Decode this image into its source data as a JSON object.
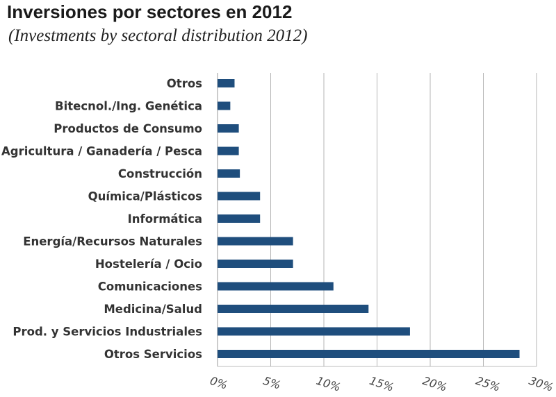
{
  "title": "Inversiones por sectores en 2012",
  "subtitle": "(Investments by sectoral distribution 2012)",
  "chart_data": {
    "type": "bar",
    "orientation": "horizontal",
    "categories": [
      "Otros",
      "Bitecnol./Ing. Genética",
      "Productos de Consumo",
      "Agricultura / Ganadería / Pesca",
      "Construcción",
      "Química/Plásticos",
      "Informática",
      "Energía/Recursos Naturales",
      "Hostelería / Ocio",
      "Comunicaciones",
      "Medicina/Salud",
      "Prod. y Servicios Industriales",
      "Otros Servicios"
    ],
    "values": [
      1.6,
      1.2,
      2.0,
      2.0,
      2.1,
      4.0,
      4.0,
      7.1,
      7.1,
      10.9,
      14.2,
      18.1,
      28.4
    ],
    "unit": "%",
    "xlim": [
      0,
      30
    ],
    "xticks": [
      "0%",
      "5%",
      "10%",
      "15%",
      "20%",
      "25%",
      "30%"
    ],
    "xlabel": "",
    "ylabel": "",
    "grid": "vertical",
    "legend": "none",
    "bar_color": "#1f4e7d"
  }
}
